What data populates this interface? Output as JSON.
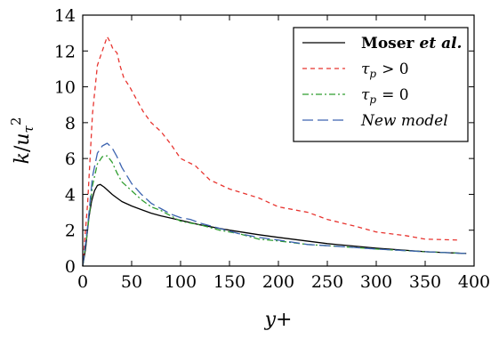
{
  "chart_data": {
    "type": "line",
    "xlabel": "y+",
    "ylabel": "k / u_τ²",
    "ylabel_parts": {
      "k": "k",
      "slash": "/",
      "u": "u",
      "sub": "τ",
      "sup": "2"
    },
    "xlim": [
      0,
      400
    ],
    "ylim": [
      0,
      14
    ],
    "xticks": [
      0,
      50,
      100,
      150,
      200,
      250,
      300,
      350,
      400
    ],
    "yticks": [
      0,
      2,
      4,
      6,
      8,
      10,
      12,
      14
    ],
    "grid": false,
    "legend_position": "top-right",
    "series": [
      {
        "name": "Moser et al.",
        "legend_main": "Moser",
        "legend_suffix": "et al.",
        "color": "#000000",
        "dash": "solid",
        "x": [
          0,
          3,
          6,
          9,
          12,
          15,
          18,
          22,
          26,
          30,
          35,
          40,
          50,
          60,
          70,
          80,
          100,
          120,
          150,
          180,
          200,
          250,
          300,
          350,
          392
        ],
        "y": [
          0,
          1.0,
          2.6,
          3.6,
          4.2,
          4.5,
          4.55,
          4.4,
          4.2,
          4.0,
          3.8,
          3.6,
          3.35,
          3.15,
          2.95,
          2.8,
          2.55,
          2.3,
          2.0,
          1.75,
          1.6,
          1.25,
          1.0,
          0.8,
          0.7
        ]
      },
      {
        "name": "τp > 0",
        "legend_tau": "τ",
        "legend_sub": "p",
        "legend_rel": "> 0",
        "color": "#e8342f",
        "dash": "dashed",
        "x": [
          0,
          5,
          10,
          15,
          20,
          25,
          28,
          31,
          35,
          38,
          42,
          48,
          55,
          62,
          70,
          80,
          90,
          100,
          115,
          130,
          150,
          180,
          200,
          230,
          250,
          280,
          300,
          330,
          350,
          385
        ],
        "y": [
          0,
          3.5,
          8.5,
          11.2,
          12.0,
          12.8,
          12.5,
          12.1,
          11.9,
          11.2,
          10.5,
          10.0,
          9.3,
          8.6,
          8.0,
          7.5,
          6.8,
          6.0,
          5.6,
          4.8,
          4.3,
          3.8,
          3.3,
          3.0,
          2.6,
          2.2,
          1.9,
          1.7,
          1.5,
          1.45
        ]
      },
      {
        "name": "τp = 0",
        "legend_tau": "τ",
        "legend_sub": "p",
        "legend_rel": "= 0",
        "color": "#2e9d2e",
        "dash": "dashdot",
        "x": [
          0,
          5,
          10,
          15,
          20,
          25,
          30,
          35,
          40,
          50,
          60,
          70,
          80,
          90,
          100,
          110,
          120,
          140,
          160,
          180,
          200,
          230,
          260,
          300,
          350,
          392
        ],
        "y": [
          0,
          2.0,
          4.5,
          5.7,
          6.1,
          6.15,
          5.8,
          5.2,
          4.7,
          4.2,
          3.7,
          3.3,
          3.1,
          2.8,
          2.5,
          2.4,
          2.3,
          2.0,
          1.8,
          1.5,
          1.4,
          1.2,
          1.1,
          0.95,
          0.8,
          0.7
        ]
      },
      {
        "name": "New model",
        "legend_text": "New model",
        "color": "#3d64b0",
        "dash": "longdash",
        "x": [
          0,
          5,
          10,
          15,
          20,
          25,
          30,
          35,
          40,
          50,
          60,
          70,
          80,
          90,
          100,
          110,
          120,
          140,
          160,
          180,
          200,
          230,
          260,
          300,
          350,
          392
        ],
        "y": [
          0,
          2.2,
          5.0,
          6.3,
          6.7,
          6.85,
          6.6,
          6.1,
          5.5,
          4.6,
          4.0,
          3.5,
          3.2,
          2.9,
          2.7,
          2.6,
          2.4,
          2.1,
          1.8,
          1.6,
          1.45,
          1.2,
          1.1,
          0.95,
          0.8,
          0.7
        ]
      }
    ]
  }
}
